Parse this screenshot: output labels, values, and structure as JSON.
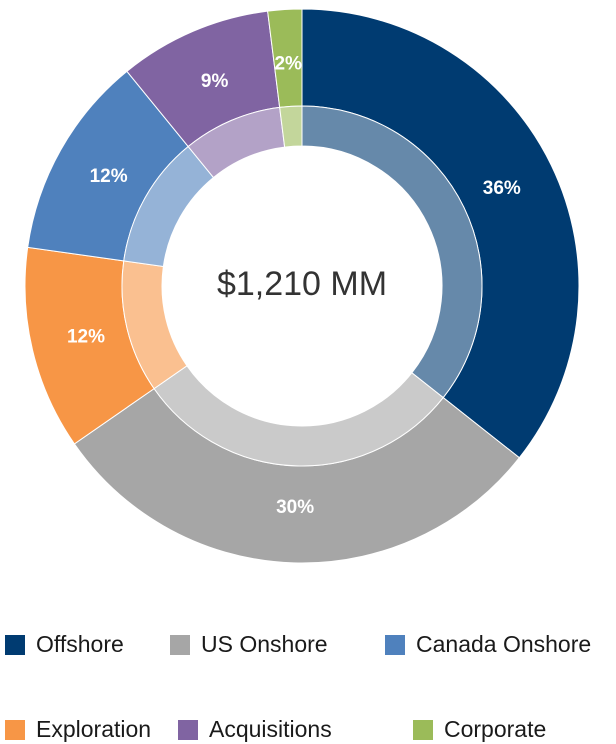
{
  "chart_data": {
    "type": "donut",
    "center_label": "$1,210 MM",
    "categories": [
      "Offshore",
      "US Onshore",
      "Exploration",
      "Canada Onshore",
      "Acquisitions",
      "Corporate"
    ],
    "values": [
      36,
      30,
      12,
      12,
      9,
      2
    ],
    "value_labels": [
      "36%",
      "30%",
      "12%",
      "12%",
      "9%",
      "2%"
    ],
    "colors": [
      "#003b71",
      "#a6a6a6",
      "#f79646",
      "#4f81bd",
      "#8064a2",
      "#9bbb59"
    ],
    "legend": "bottom"
  }
}
